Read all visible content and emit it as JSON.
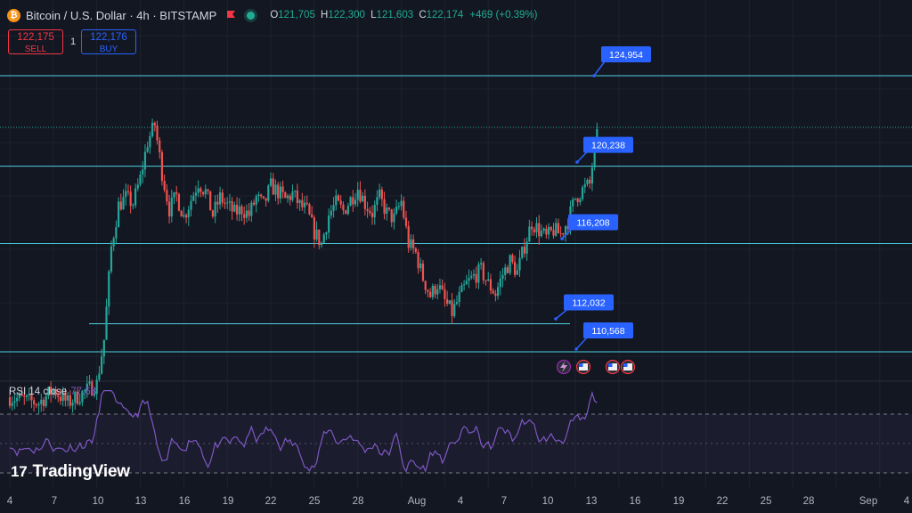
{
  "header": {
    "coin_glyph": "₿",
    "symbol": "Bitcoin / U.S. Dollar · 4h · BITSTAMP",
    "ohlc": {
      "o_key": "O",
      "o": "121,705",
      "h_key": "H",
      "h": "122,300",
      "l_key": "L",
      "l": "121,603",
      "c_key": "C",
      "c": "122,174",
      "change": "+469 (+0.39%)"
    },
    "flag_icon": "flag-icon",
    "market_status": "market-open"
  },
  "trade": {
    "sell_price": "122,175",
    "sell_label": "SELL",
    "spread": "1",
    "buy_price": "122,176",
    "buy_label": "BUY"
  },
  "levels": [
    {
      "label": "124,954",
      "price": 124954
    },
    {
      "label": "120,238",
      "price": 120238
    },
    {
      "label": "116,208",
      "price": 116208
    },
    {
      "label": "112,032",
      "price": 112032
    },
    {
      "label": "110,568",
      "price": 110568
    }
  ],
  "indicator": {
    "name": "RSI 14 close",
    "value": "77.68"
  },
  "brand": {
    "logo_mark": "17",
    "name": "TradingView"
  },
  "x_axis": [
    "4",
    "7",
    "10",
    "13",
    "16",
    "19",
    "22",
    "25",
    "28",
    "Aug",
    "4",
    "7",
    "10",
    "13",
    "16",
    "19",
    "22",
    "25",
    "28",
    "Sep",
    "4"
  ],
  "colors": {
    "up": "#26a69a",
    "down": "#ef5350",
    "level_line": "#4dd0e1",
    "callout": "#2962ff",
    "rsi": "#7e57c2"
  },
  "chart_data": {
    "type": "candlestick",
    "symbol": "BTCUSD",
    "interval": "4h",
    "ohlc_last": {
      "open": 121705,
      "high": 122300,
      "low": 121603,
      "close": 122174
    },
    "price_range_visible": [
      106800,
      126600
    ],
    "horizontal_levels": [
      124954,
      120238,
      116208,
      112032,
      110568
    ],
    "close_path": [
      [
        4,
        108200
      ],
      [
        6,
        107900
      ],
      [
        7,
        108600
      ],
      [
        8,
        107900
      ],
      [
        9,
        108400
      ],
      [
        10,
        108900
      ],
      [
        10.5,
        111200
      ],
      [
        11,
        116000
      ],
      [
        11.5,
        118200
      ],
      [
        12,
        118600
      ],
      [
        12.5,
        118300
      ],
      [
        13,
        119600
      ],
      [
        13.5,
        121500
      ],
      [
        14,
        122400
      ],
      [
        14.5,
        119900
      ],
      [
        15,
        118000
      ],
      [
        15.5,
        118700
      ],
      [
        16,
        117600
      ],
      [
        16.5,
        118500
      ],
      [
        17,
        119400
      ],
      [
        17.5,
        118900
      ],
      [
        18,
        117700
      ],
      [
        18.5,
        118600
      ],
      [
        19,
        118200
      ],
      [
        19.5,
        117800
      ],
      [
        20,
        118000
      ],
      [
        20.5,
        117700
      ],
      [
        21,
        118600
      ],
      [
        21.5,
        118200
      ],
      [
        22,
        119200
      ],
      [
        22.5,
        118900
      ],
      [
        23,
        118500
      ],
      [
        23.5,
        118800
      ],
      [
        24,
        118200
      ],
      [
        24.5,
        117900
      ],
      [
        25,
        116800
      ],
      [
        25.5,
        116200
      ],
      [
        26,
        117700
      ],
      [
        26.5,
        118300
      ],
      [
        27,
        117900
      ],
      [
        27.5,
        118500
      ],
      [
        28,
        119100
      ],
      [
        28.5,
        118300
      ],
      [
        29,
        117800
      ],
      [
        29.5,
        118600
      ],
      [
        30,
        117800
      ],
      [
        30.5,
        117500
      ],
      [
        31,
        118400
      ],
      [
        31.5,
        116200
      ],
      [
        32,
        115700
      ],
      [
        32.5,
        114400
      ],
      [
        33,
        113500
      ],
      [
        33.5,
        114100
      ],
      [
        34,
        113200
      ],
      [
        34.5,
        112600
      ],
      [
        35,
        113400
      ],
      [
        35.5,
        114100
      ],
      [
        36,
        114500
      ],
      [
        36.5,
        114800
      ],
      [
        37,
        114100
      ],
      [
        37.5,
        113600
      ],
      [
        38,
        114600
      ],
      [
        38.5,
        115300
      ],
      [
        39,
        114700
      ],
      [
        39.5,
        116100
      ],
      [
        40,
        117300
      ],
      [
        40.5,
        116900
      ],
      [
        41,
        116500
      ],
      [
        41.5,
        116900
      ],
      [
        42,
        116700
      ],
      [
        42.5,
        117400
      ],
      [
        43,
        118600
      ],
      [
        43.5,
        119000
      ],
      [
        44,
        119300
      ],
      [
        44.5,
        122174
      ]
    ],
    "rsi": {
      "name": "RSI 14 close",
      "last": 77.68,
      "bands": [
        70,
        50,
        30
      ]
    }
  }
}
